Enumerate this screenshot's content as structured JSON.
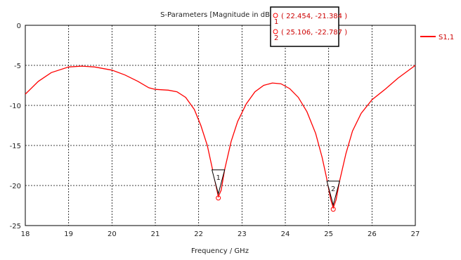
{
  "chart_data": {
    "type": "line",
    "title": "S-Parameters [Magnitude in dB]",
    "xlabel": "Frequency / GHz",
    "ylabel": "",
    "xlim": [
      18,
      27
    ],
    "ylim": [
      -25,
      0
    ],
    "x_ticks": [
      18,
      19,
      20,
      21,
      22,
      23,
      24,
      25,
      26,
      27
    ],
    "y_ticks": [
      0,
      -5,
      -10,
      -15,
      -20,
      -25
    ],
    "grid": true,
    "legend_position": "right",
    "series": [
      {
        "name": "S1,1",
        "color": "#ff0000",
        "points": [
          [
            18.0,
            -8.6
          ],
          [
            18.3,
            -7.0
          ],
          [
            18.6,
            -5.9
          ],
          [
            19.0,
            -5.2
          ],
          [
            19.3,
            -5.1
          ],
          [
            19.6,
            -5.2
          ],
          [
            20.0,
            -5.6
          ],
          [
            20.3,
            -6.2
          ],
          [
            20.6,
            -7.0
          ],
          [
            20.85,
            -7.8
          ],
          [
            21.0,
            -8.0
          ],
          [
            21.3,
            -8.1
          ],
          [
            21.5,
            -8.3
          ],
          [
            21.7,
            -9.0
          ],
          [
            21.9,
            -10.5
          ],
          [
            22.05,
            -12.5
          ],
          [
            22.2,
            -15.0
          ],
          [
            22.3,
            -17.5
          ],
          [
            22.4,
            -20.0
          ],
          [
            22.454,
            -21.384
          ],
          [
            22.52,
            -20.6
          ],
          [
            22.6,
            -18.0
          ],
          [
            22.75,
            -14.5
          ],
          [
            22.9,
            -12.0
          ],
          [
            23.1,
            -9.8
          ],
          [
            23.3,
            -8.3
          ],
          [
            23.5,
            -7.5
          ],
          [
            23.7,
            -7.2
          ],
          [
            23.9,
            -7.3
          ],
          [
            24.1,
            -7.9
          ],
          [
            24.3,
            -9.0
          ],
          [
            24.5,
            -10.8
          ],
          [
            24.7,
            -13.5
          ],
          [
            24.85,
            -16.5
          ],
          [
            24.95,
            -19.0
          ],
          [
            25.05,
            -21.8
          ],
          [
            25.106,
            -22.787
          ],
          [
            25.17,
            -21.8
          ],
          [
            25.25,
            -19.5
          ],
          [
            25.4,
            -16.0
          ],
          [
            25.55,
            -13.2
          ],
          [
            25.75,
            -11.0
          ],
          [
            26.0,
            -9.3
          ],
          [
            26.3,
            -8.0
          ],
          [
            26.6,
            -6.6
          ],
          [
            27.0,
            -5.0
          ]
        ]
      }
    ],
    "markers": [
      {
        "label": "1",
        "x": 22.454,
        "y": -21.384,
        "readout": "( 22.454, -21.384 )"
      },
      {
        "label": "2",
        "x": 25.106,
        "y": -22.787,
        "readout": "( 25.106, -22.787 )"
      }
    ]
  }
}
